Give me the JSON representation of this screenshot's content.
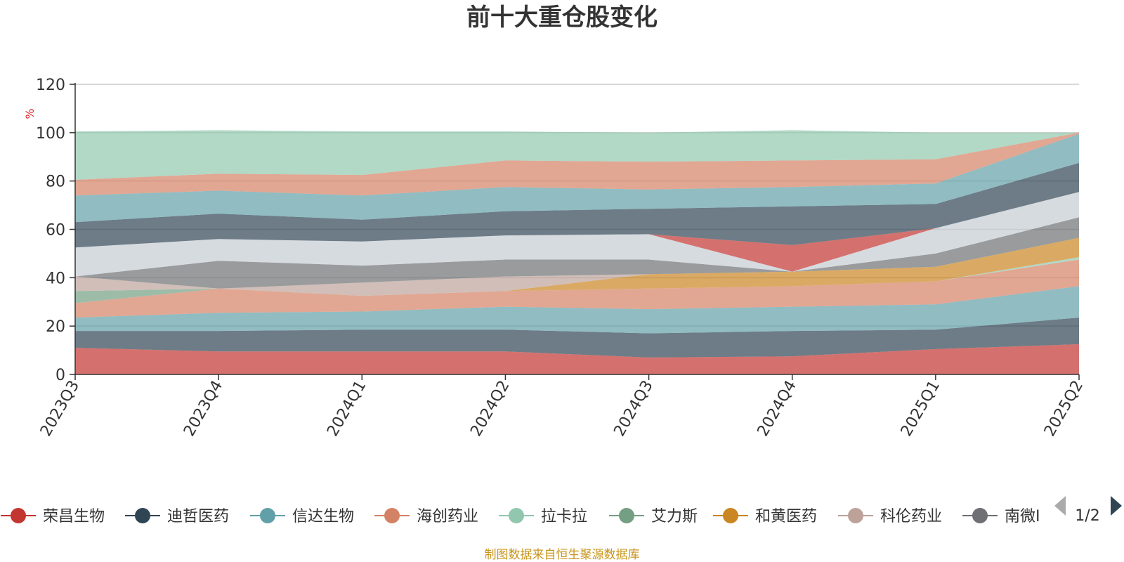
{
  "chart_data": {
    "type": "area",
    "stacked": true,
    "title": "前十大重仓股变化",
    "ylabel": "%",
    "ylim": [
      0,
      120
    ],
    "yticks": [
      0,
      20,
      40,
      60,
      80,
      100,
      120
    ],
    "categories": [
      "2023Q3",
      "2023Q4",
      "2024Q1",
      "2024Q2",
      "2024Q3",
      "2024Q4",
      "2025Q1",
      "2025Q2"
    ],
    "series": [
      {
        "name": "荣昌生物",
        "color": "#c23531",
        "values": [
          11,
          9.5,
          9.5,
          9.5,
          7,
          7.5,
          10.5,
          12.5
        ]
      },
      {
        "name": "迪哲医药",
        "color": "#2f4554",
        "values": [
          7,
          8.5,
          9,
          9,
          10,
          10.5,
          8,
          11
        ]
      },
      {
        "name": "信达生物",
        "color": "#61a0a8",
        "values": [
          5.5,
          7.5,
          7.5,
          9.5,
          10,
          10,
          10.5,
          13
        ]
      },
      {
        "name": "海创药业",
        "color": "#d48265",
        "values": [
          6,
          10,
          6.5,
          6.5,
          8.5,
          8.5,
          9.5,
          11
        ]
      },
      {
        "name": "拉卡拉",
        "color": "#91c7ae",
        "values": [
          0,
          0,
          0,
          0,
          0,
          0,
          0,
          1
        ]
      },
      {
        "name": "艾力斯",
        "color": "#749f83",
        "values": [
          5,
          0,
          0,
          0,
          0,
          0,
          0,
          0
        ]
      },
      {
        "name": "和黄医药",
        "color": "#ca8622",
        "values": [
          0,
          0,
          0,
          0,
          6,
          6,
          6,
          8
        ]
      },
      {
        "name": "科伦药业",
        "color": "#bda29a",
        "values": [
          6,
          0,
          5.5,
          6,
          0,
          0,
          0,
          0
        ]
      },
      {
        "name": "南微医学",
        "color": "#6e7074",
        "values": [
          0,
          11.5,
          7,
          7,
          6,
          0,
          5.5,
          8.5
        ]
      },
      {
        "name": "",
        "color": "#546570",
        "values": [
          0,
          0,
          0,
          0,
          0,
          0,
          0,
          0
        ]
      },
      {
        "name": "",
        "color": "#c4ccd3",
        "values": [
          12,
          9,
          10,
          10,
          10.5,
          0,
          10.5,
          10.5
        ]
      },
      {
        "name": "",
        "color": "#c23531",
        "values": [
          0,
          0,
          0,
          0,
          0,
          11,
          0,
          0
        ]
      },
      {
        "name": "",
        "color": "#2f4554",
        "values": [
          10.5,
          10.5,
          9,
          10,
          10.5,
          16,
          10,
          12
        ]
      },
      {
        "name": "",
        "color": "#61a0a8",
        "values": [
          11,
          9.5,
          10,
          10,
          8,
          8,
          8.5,
          12
        ]
      },
      {
        "name": "",
        "color": "#d48265",
        "values": [
          6.5,
          7,
          8.5,
          11,
          11.5,
          11,
          10,
          0.5
        ]
      },
      {
        "name": "",
        "color": "#91c7ae",
        "values": [
          20,
          18,
          18,
          12,
          12,
          12.5,
          11,
          0
        ]
      }
    ]
  },
  "legend": {
    "items": [
      {
        "label": "荣昌生物",
        "color": "#c23531"
      },
      {
        "label": "迪哲医药",
        "color": "#2f4554"
      },
      {
        "label": "信达生物",
        "color": "#61a0a8"
      },
      {
        "label": "海创药业",
        "color": "#d48265"
      },
      {
        "label": "拉卡拉",
        "color": "#91c7ae"
      },
      {
        "label": "艾力斯",
        "color": "#749f83"
      },
      {
        "label": "和黄医药",
        "color": "#ca8622"
      },
      {
        "label": "科伦药业",
        "color": "#bda29a"
      },
      {
        "label": "南微I",
        "color": "#6e7074"
      }
    ],
    "page_indicator": "1/2"
  },
  "unit_color": "#e0252a",
  "source_text": "制图数据来自恒生聚源数据库",
  "source_color": "#c8951c"
}
